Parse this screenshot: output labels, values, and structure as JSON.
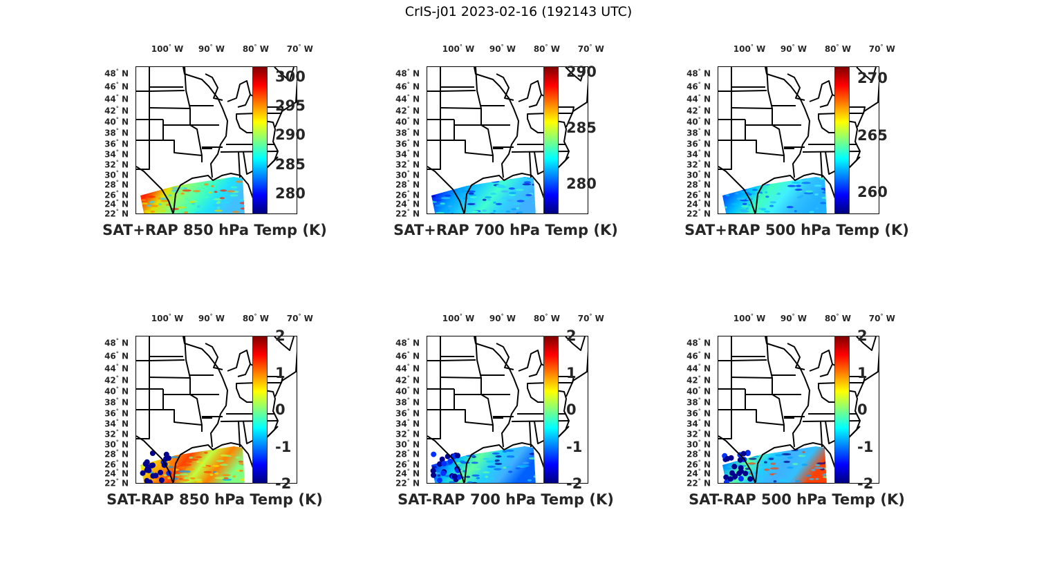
{
  "title": "CrIS-j01 2023-02-16 (192143 UTC)",
  "axes": {
    "lon_ticks": [
      {
        "value": 100,
        "label": "100",
        "hem": "W"
      },
      {
        "value": 90,
        "label": "90",
        "hem": "W"
      },
      {
        "value": 80,
        "label": "80",
        "hem": "W"
      },
      {
        "value": 70,
        "label": "70",
        "hem": "W"
      }
    ],
    "lat_ticks": [
      48,
      46,
      44,
      42,
      40,
      38,
      36,
      34,
      32,
      30,
      28,
      26,
      24,
      22
    ],
    "lat_hem": "N",
    "lon_range_w": [
      107.2,
      70.6
    ],
    "lat_range": [
      22,
      49.2
    ]
  },
  "panels": [
    {
      "title": "SAT+RAP 850 hPa Temp (K)",
      "clim": [
        276.4,
        301.8
      ],
      "cbar_ticks": [
        "280",
        "285",
        "290",
        "295",
        "300"
      ],
      "swath_colors": [
        "#ff8000",
        "#ff2000",
        "#e0e000",
        "#80ff80",
        "#40ffc0",
        "#20e0ff",
        "#40c0ff"
      ],
      "dots": false
    },
    {
      "title": "SAT+RAP 700 hPa Temp (K)",
      "clim": [
        277.3,
        290.5
      ],
      "cbar_ticks": [
        "280",
        "285",
        "290"
      ],
      "swath_colors": [
        "#0000c0",
        "#0030ff",
        "#00a0ff",
        "#20d0ff",
        "#40ffd0",
        "#30d0ff",
        "#40b0ff"
      ],
      "dots": false
    },
    {
      "title": "SAT+RAP 500 hPa Temp (K)",
      "clim": [
        258.1,
        271.0
      ],
      "cbar_ticks": [
        "260",
        "265",
        "270"
      ],
      "swath_colors": [
        "#0020ff",
        "#0060ff",
        "#00c0ff",
        "#40ffc0",
        "#40f0ff",
        "#30c0ff",
        "#20b0ff"
      ],
      "dots": false
    },
    {
      "title": "SAT-RAP 850 hPa Temp (K)",
      "clim": [
        -2,
        2
      ],
      "cbar_ticks": [
        "-2",
        "-1",
        "0",
        "1",
        "2"
      ],
      "swath_colors": [
        "#00a0ff",
        "#ffe000",
        "#ffa000",
        "#ff4000",
        "#c0ff40",
        "#ff8000",
        "#80ff80"
      ],
      "dots": true
    },
    {
      "title": "SAT-RAP 700 hPa Temp (K)",
      "clim": [
        -2,
        2
      ],
      "cbar_ticks": [
        "-2",
        "-1",
        "0",
        "1",
        "2"
      ],
      "swath_colors": [
        "#00008f",
        "#0040ff",
        "#00c0ff",
        "#60ffa0",
        "#20d0ff",
        "#40b0ff",
        "#0060ff"
      ],
      "dots": true
    },
    {
      "title": "SAT-RAP 500 hPa Temp (K)",
      "clim": [
        -2,
        2
      ],
      "cbar_ticks": [
        "-2",
        "-1",
        "0",
        "1",
        "2"
      ],
      "swath_colors": [
        "#00008f",
        "#00a0ff",
        "#60ffa0",
        "#20d0ff",
        "#40b0ff",
        "#30c0ff",
        "#ff4000"
      ],
      "dots": true
    }
  ]
}
